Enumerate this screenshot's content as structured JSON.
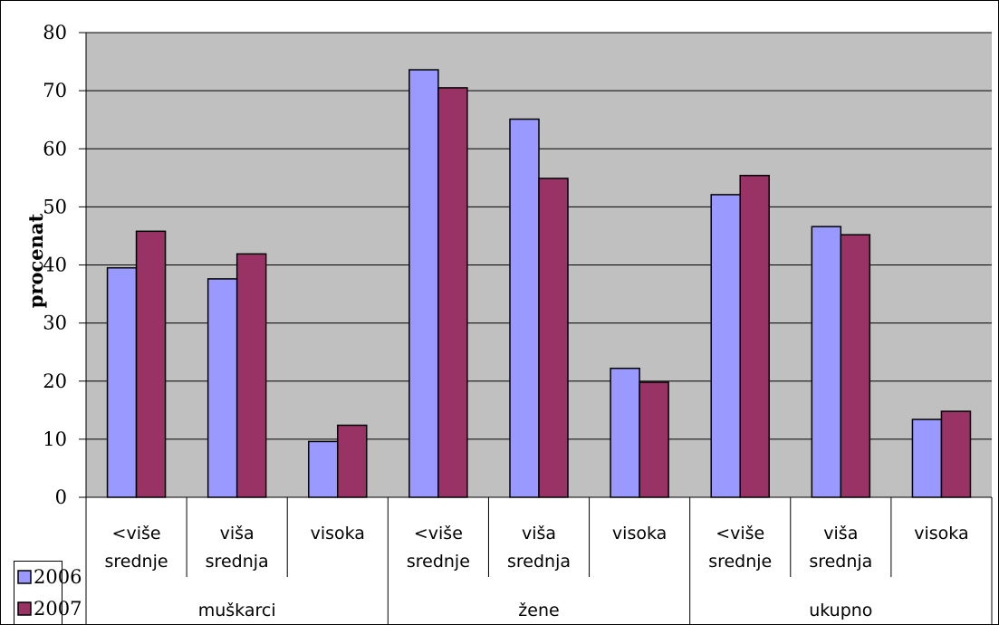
{
  "chart_data": {
    "type": "bar",
    "ylabel": "procenat",
    "xlabel": "",
    "ylim": [
      0,
      80
    ],
    "yticks": [
      0,
      10,
      20,
      30,
      40,
      50,
      60,
      70,
      80
    ],
    "grid": true,
    "legend_position": "bottom-left",
    "groups": [
      {
        "name": "muškarci",
        "categories": [
          [
            "<više",
            "srednje"
          ],
          [
            "viša",
            "srednja"
          ],
          [
            "visoka"
          ]
        ]
      },
      {
        "name": "žene",
        "categories": [
          [
            "<više",
            "srednje"
          ],
          [
            "viša",
            "srednja"
          ],
          [
            "visoka"
          ]
        ]
      },
      {
        "name": "ukupno",
        "categories": [
          [
            "<više",
            "srednje"
          ],
          [
            "viša",
            "srednja"
          ],
          [
            "visoka"
          ]
        ]
      }
    ],
    "series": [
      {
        "name": "2006",
        "color": "#9999ff",
        "values": [
          39.5,
          37.6,
          9.6,
          73.6,
          65.1,
          22.2,
          52.1,
          46.6,
          13.4
        ]
      },
      {
        "name": "2007",
        "color": "#993366",
        "values": [
          45.8,
          41.9,
          12.4,
          70.5,
          54.9,
          19.8,
          55.4,
          45.2,
          14.8
        ]
      }
    ],
    "plot_background": "#c0c0c0"
  }
}
